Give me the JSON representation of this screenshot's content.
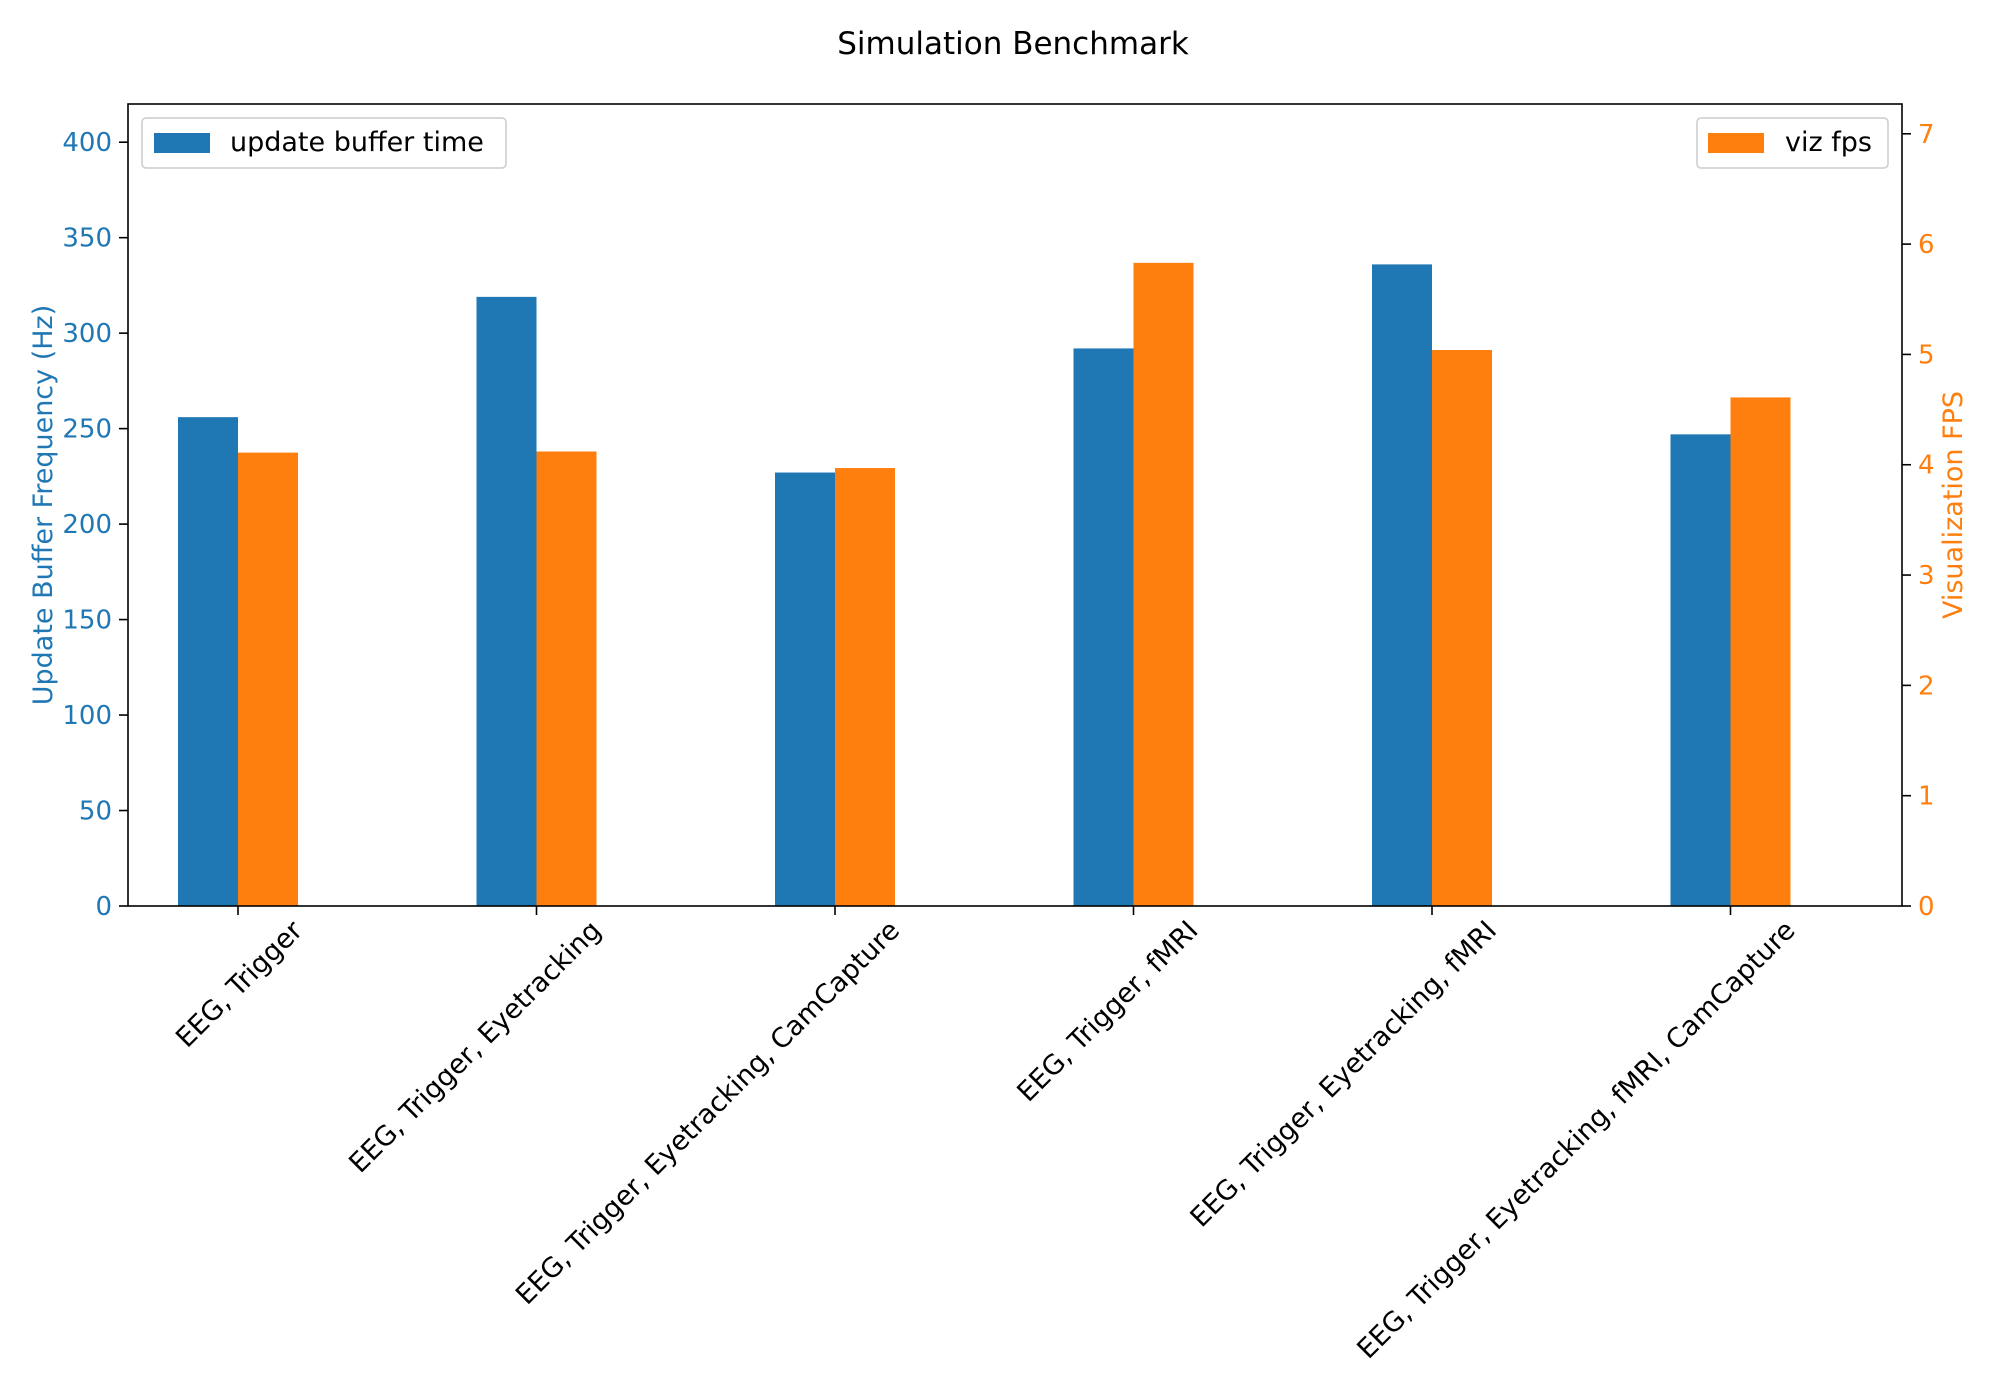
{
  "chart_data": {
    "type": "bar",
    "title": "Simulation Benchmark",
    "categories": [
      "EEG, Trigger",
      "EEG, Trigger, Eyetracking",
      "EEG, Trigger, Eyetracking, CamCapture",
      "EEG, Trigger, fMRI",
      "EEG, Trigger, Eyetracking, fMRI",
      "EEG, Trigger, Eyetracking, fMRI, CamCapture"
    ],
    "series": [
      {
        "name": "update buffer time",
        "axis": "left",
        "color": "#1f77b4",
        "values": [
          256,
          319,
          227,
          292,
          336,
          247
        ]
      },
      {
        "name": "viz fps",
        "axis": "right",
        "color": "#ff7f0e",
        "values": [
          4.11,
          4.12,
          3.97,
          5.83,
          5.04,
          4.61
        ]
      }
    ],
    "y_left": {
      "label": "Update Buffer Frequency (Hz)",
      "ylim": [
        0,
        420
      ],
      "ticks": [
        0,
        50,
        100,
        150,
        200,
        250,
        300,
        350,
        400
      ],
      "color": "#1f77b4"
    },
    "y_right": {
      "label": "Visualization FPS",
      "ylim": [
        0,
        7.27
      ],
      "ticks": [
        0,
        1,
        2,
        3,
        4,
        5,
        6,
        7
      ],
      "color": "#ff7f0e"
    },
    "legend_left_placement": "upper-left",
    "legend_right_placement": "upper-right",
    "grid": false
  }
}
